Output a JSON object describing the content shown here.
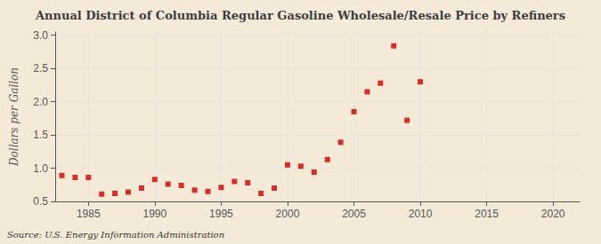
{
  "chart_data": {
    "type": "scatter",
    "title": "Annual District of Columbia Regular Gasoline Wholesale/Resale Price by Refiners",
    "ylabel": "Dollars per Gallon",
    "source": "Source: U.S. Energy Information Administration",
    "background_color": "#f5ead8",
    "color": "#cc0000",
    "marker": "square",
    "grid": true,
    "x": [
      1983,
      1984,
      1985,
      1986,
      1987,
      1988,
      1989,
      1990,
      1991,
      1992,
      1993,
      1994,
      1995,
      1996,
      1997,
      1998,
      1999,
      2000,
      2001,
      2002,
      2003,
      2004,
      2005,
      2006,
      2007,
      2008,
      2009,
      2010
    ],
    "values": [
      0.89,
      0.86,
      0.86,
      0.61,
      0.62,
      0.64,
      0.7,
      0.83,
      0.76,
      0.74,
      0.67,
      0.65,
      0.71,
      0.8,
      0.78,
      0.62,
      0.7,
      1.05,
      1.03,
      0.94,
      1.13,
      1.39,
      1.85,
      2.15,
      2.28,
      2.84,
      1.72,
      2.3
    ],
    "xlim": [
      1982.5,
      2022
    ],
    "ylim": [
      0.5,
      3.05
    ],
    "xticks": [
      1985,
      1990,
      1995,
      2000,
      2005,
      2010,
      2015,
      2020
    ],
    "yticks": [
      0.5,
      {
        "value": 1.0,
        "label": "1.0"
      },
      1.5,
      {
        "value": 2.0,
        "label": "2.0"
      },
      2.5,
      {
        "value": 3.0,
        "label": "3.0"
      }
    ]
  }
}
